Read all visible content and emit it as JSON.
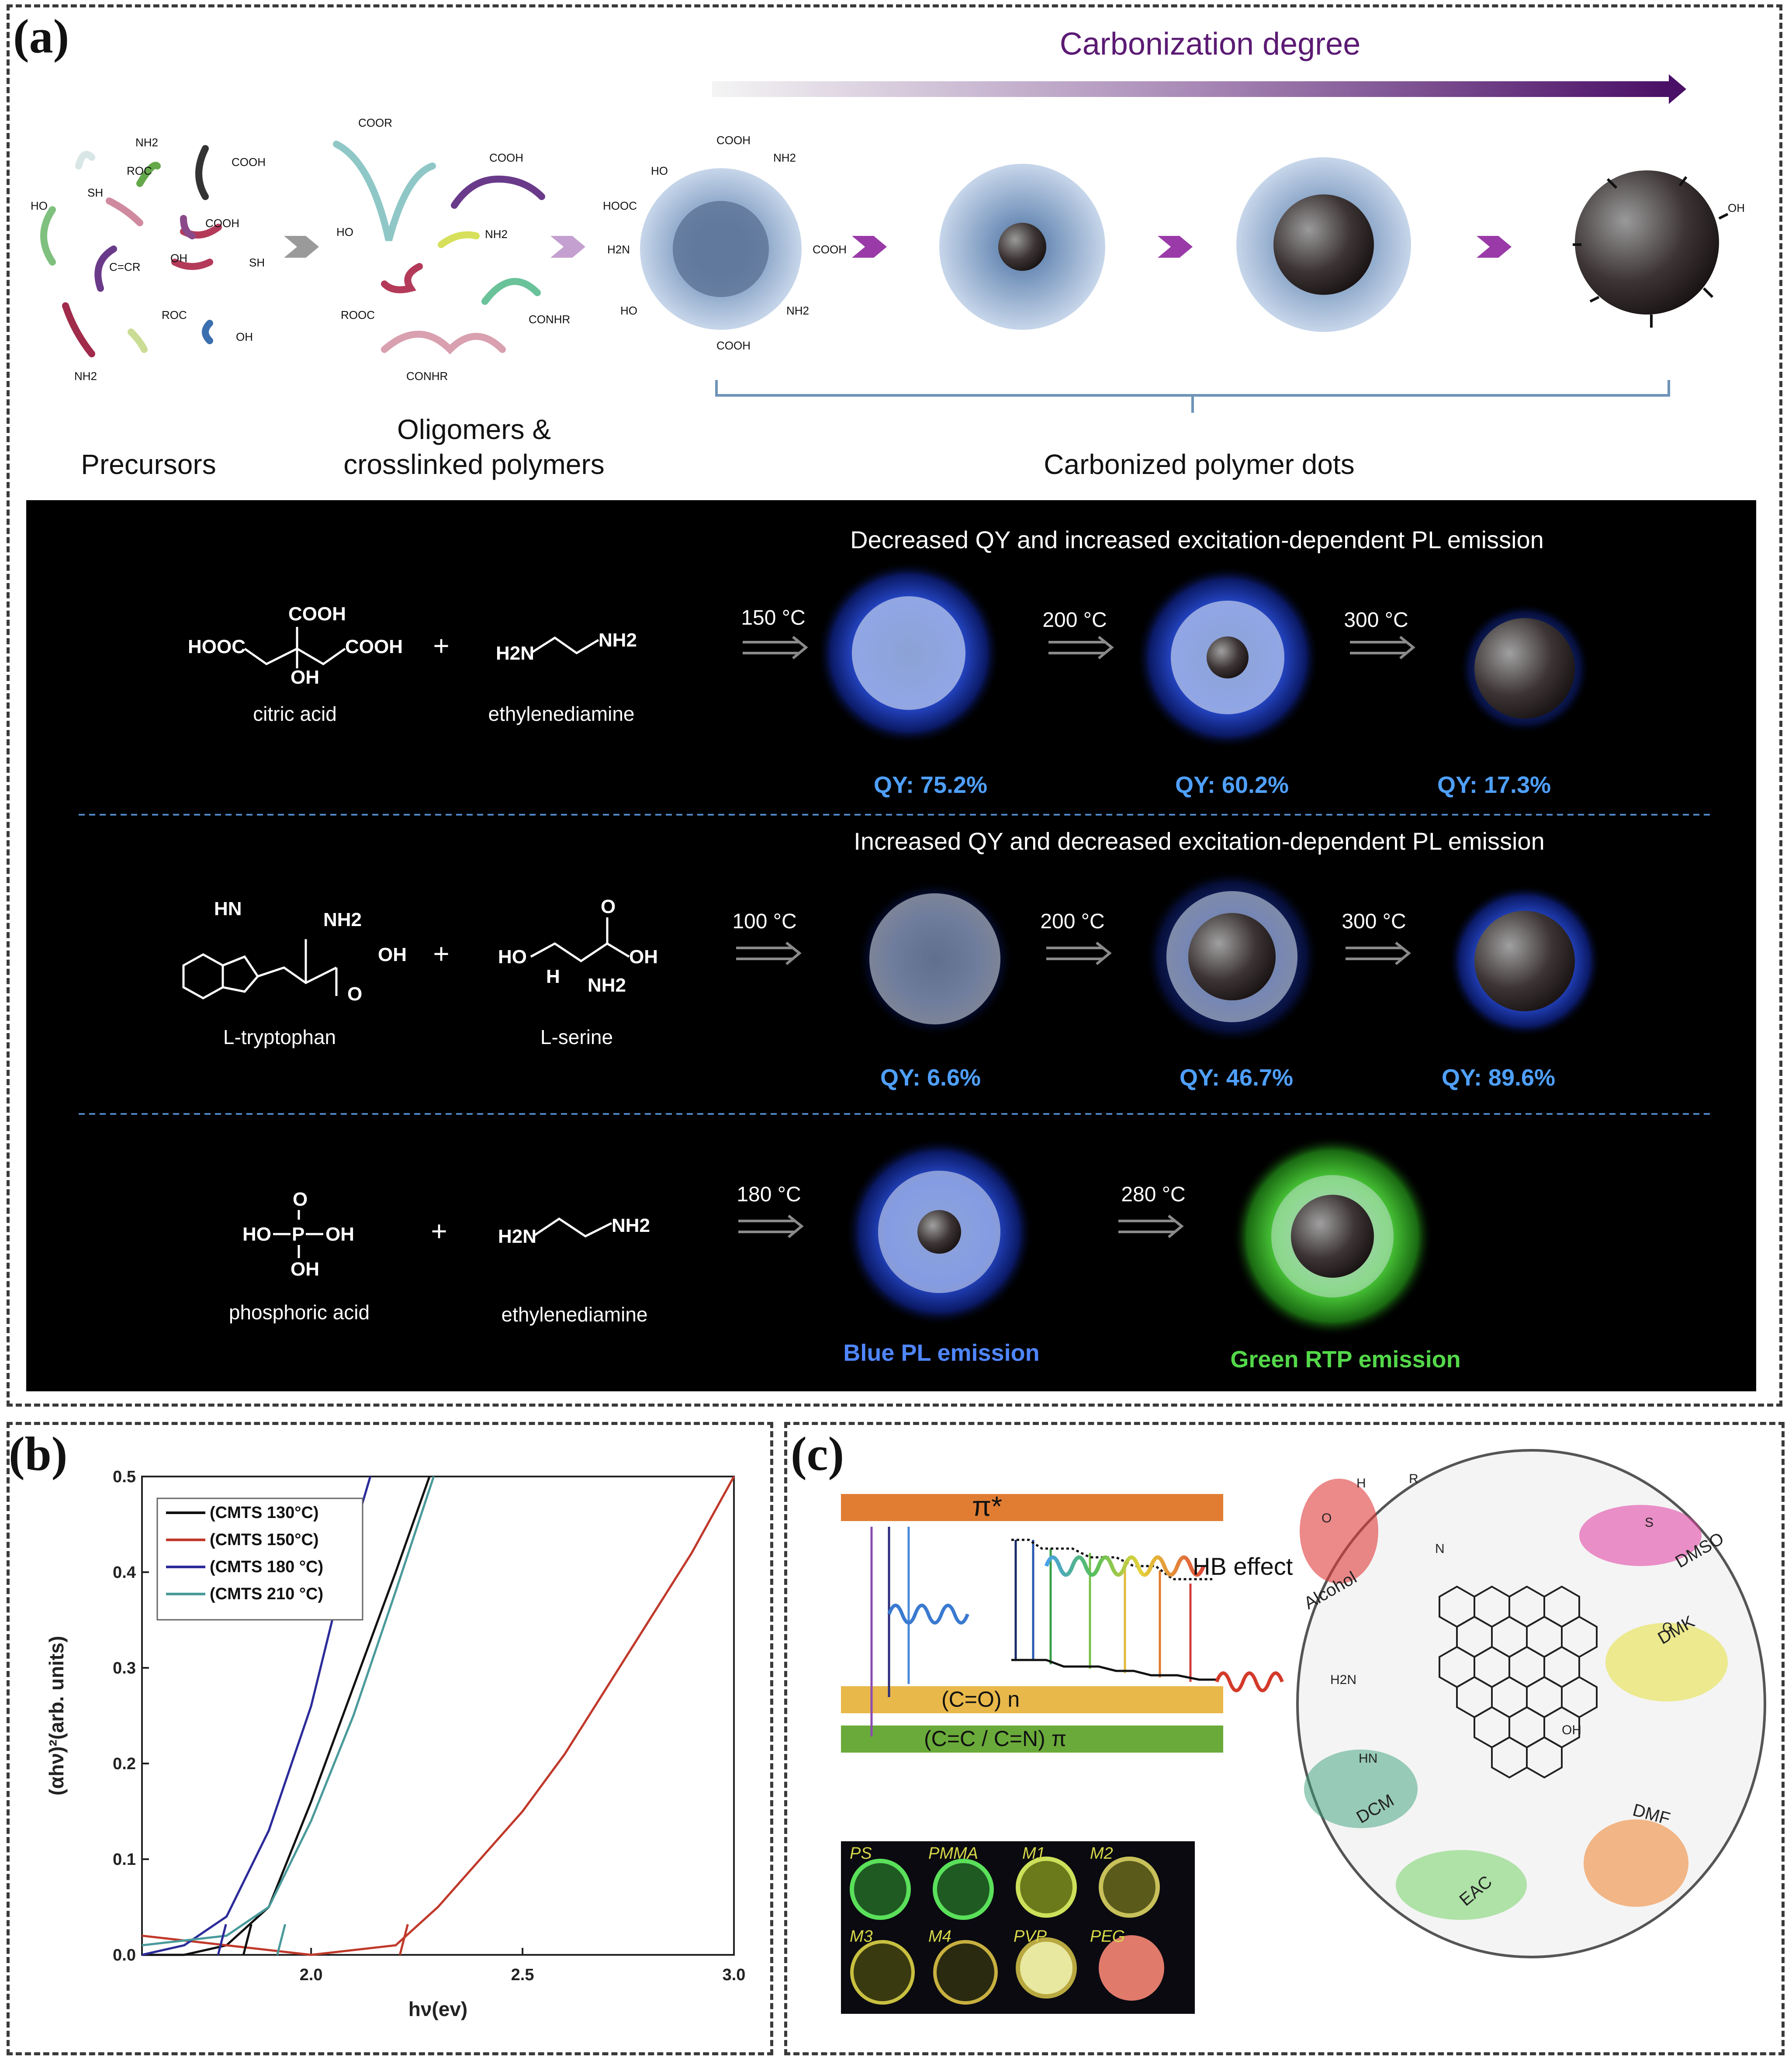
{
  "panel_a": {
    "label": "(a)",
    "carbonization_label": "Carbonization degree",
    "precursors_label": "Precursors",
    "oligomers_label_1": "Oligomers &",
    "oligomers_label_2": "crosslinked polymers",
    "cpd_label": "Carbonized polymer dots",
    "precursor_groups": [
      "NH2",
      "ROC",
      "SH",
      "HO",
      "COOH",
      "COOH",
      "OH",
      "C=CR",
      "SH",
      "ROC",
      "OH",
      "NH2"
    ],
    "oligomer_groups": [
      "COOR",
      "COOH",
      "HO",
      "NH2",
      "ROOC",
      "CONHR",
      "CONHR"
    ],
    "dot_groups": [
      "HO",
      "COOH",
      "NH2",
      "HOOC",
      "COOH",
      "H2N",
      "HO",
      "COOH",
      "NH2",
      "OH"
    ],
    "rows": [
      {
        "header": "Decreased  QY and increased excitation-dependent  PL emission",
        "reagent1_name": "citric acid",
        "reagent2_name": "ethylenediamine",
        "plus": "+",
        "temps": [
          "150 °C",
          "200 °C",
          "300 °C"
        ],
        "qy": [
          "QY:  75.2%",
          "QY:  60.2%",
          "QY:  17.3%"
        ]
      },
      {
        "header": "Increased  QY and decreased excitation-dependent  PL emission",
        "reagent1_name": "L-tryptophan",
        "reagent2_name": "L-serine",
        "plus": "+",
        "temps": [
          "100 °C",
          "200 °C",
          "300 °C"
        ],
        "qy": [
          "QY:  6.6%",
          "QY:  46.7%",
          "QY:  89.6%"
        ]
      },
      {
        "reagent1_name": "phosphoric acid",
        "reagent2_name": "ethylenediamine",
        "plus": "+",
        "temps": [
          "180 °C",
          "280 °C"
        ],
        "emissions": [
          "Blue PL emission",
          "Green RTP emission"
        ]
      }
    ],
    "structures": {
      "citric_acid": [
        "COOH",
        "HOOC",
        "COOH",
        "OH"
      ],
      "ethylenediamine": [
        "H2N",
        "NH2"
      ],
      "tryptophan": [
        "HN",
        "NH2",
        "OH",
        "O"
      ],
      "serine": [
        "HO",
        "O",
        "OH",
        "H",
        "NH2"
      ],
      "phosphoric_acid": [
        "O",
        "HO",
        "P",
        "OH",
        "OH"
      ]
    },
    "colors": {
      "dark_bg": "#000000",
      "blue_glow": "#2a57ff",
      "green_glow": "#4fd23c",
      "purple": "#5b1a73"
    }
  },
  "panel_b": {
    "label": "(b)",
    "chart_data": {
      "type": "line",
      "title": "",
      "xlabel": "hν(ev)",
      "ylabel": "(αhν)²(arb. units)",
      "xlim": [
        1.6,
        3.0
      ],
      "ylim": [
        0.0,
        0.5
      ],
      "xticks": [
        "2.0",
        "2.5",
        "3.0"
      ],
      "yticks": [
        "0.0",
        "0.1",
        "0.2",
        "0.3",
        "0.4",
        "0.5"
      ],
      "legend_position": "top-left",
      "series": [
        {
          "name": "(CMTS 130°C)",
          "color": "#111111",
          "x": [
            1.6,
            1.7,
            1.8,
            1.9,
            2.0,
            2.1,
            2.2,
            2.28
          ],
          "y": [
            0.0,
            0.0,
            0.01,
            0.05,
            0.16,
            0.28,
            0.4,
            0.5
          ]
        },
        {
          "name": "(CMTS 150°C)",
          "color": "#c0392b",
          "x": [
            1.6,
            1.8,
            2.0,
            2.2,
            2.3,
            2.4,
            2.5,
            2.6,
            2.7,
            2.8,
            2.9,
            3.0
          ],
          "y": [
            0.02,
            0.01,
            0.0,
            0.01,
            0.05,
            0.1,
            0.15,
            0.21,
            0.28,
            0.35,
            0.42,
            0.5
          ]
        },
        {
          "name": "(CMTS 180 °C)",
          "color": "#2b2b9a",
          "x": [
            1.6,
            1.7,
            1.8,
            1.9,
            2.0,
            2.1,
            2.14
          ],
          "y": [
            0.0,
            0.01,
            0.04,
            0.13,
            0.26,
            0.44,
            0.5
          ]
        },
        {
          "name": "(CMTS 210 °C)",
          "color": "#4a9a9a",
          "x": [
            1.6,
            1.7,
            1.8,
            1.9,
            2.0,
            2.1,
            2.2,
            2.29
          ],
          "y": [
            0.01,
            0.015,
            0.02,
            0.05,
            0.14,
            0.25,
            0.38,
            0.5
          ]
        }
      ],
      "tangent_intercepts": [
        1.78,
        1.84,
        1.92,
        2.21
      ]
    }
  },
  "panel_c": {
    "label": "(c)",
    "pi_star": "π*",
    "hb_effect": "HB effect",
    "n_level": "(C=O)  n",
    "pi_level": "(C=C / C=N)  π",
    "solvents": [
      "Alcohol",
      "DMSO",
      "DMK",
      "DCM",
      "DMF",
      "EAC"
    ],
    "groups": [
      "H",
      "R",
      "O",
      "OH",
      "H2N",
      "HN",
      "N",
      "S",
      "O"
    ],
    "films": [
      "PS",
      "PMMA",
      "M1",
      "M2",
      "M3",
      "M4",
      "PVP",
      "PEG"
    ],
    "colors": {
      "orange_band": "#e07d33",
      "yellow_band": "#e8b84a",
      "green_band": "#6aaa3a"
    }
  }
}
